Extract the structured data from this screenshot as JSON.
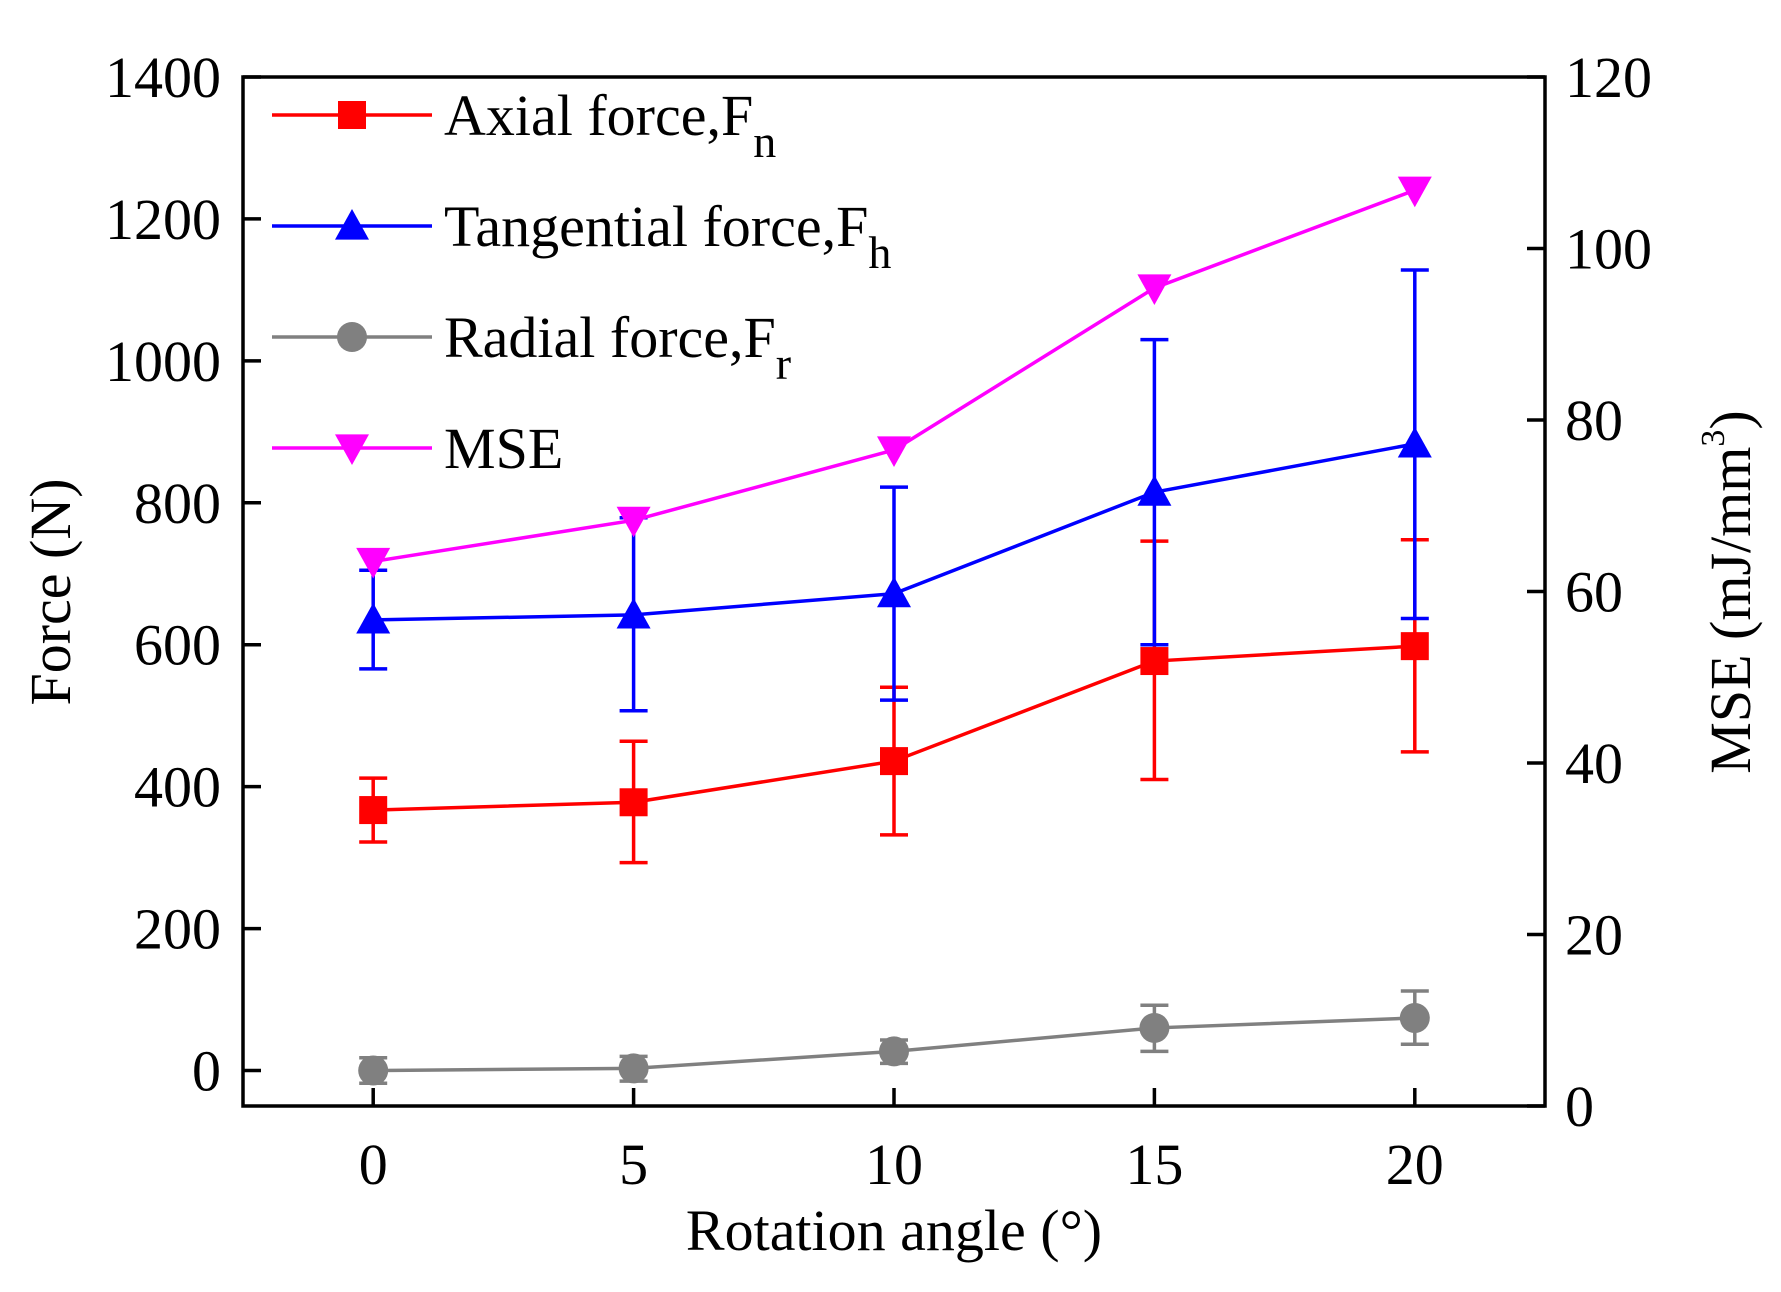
{
  "chart_data": {
    "type": "line",
    "xlabel": "Rotation angle (°)",
    "ylabel_left": "Force (N)",
    "ylabel_right_base": "MSE (mJ/mm",
    "ylabel_right_sup": "3",
    "ylabel_right_end": ")",
    "x": [
      0,
      5,
      10,
      15,
      20
    ],
    "xlim": [
      -2.5,
      22.5
    ],
    "ylim_left": [
      -50,
      1400
    ],
    "ylim_right": [
      0,
      120
    ],
    "x_ticks": [
      0,
      5,
      10,
      15,
      20
    ],
    "y_ticks_left": [
      0,
      200,
      400,
      600,
      800,
      1000,
      1200,
      1400
    ],
    "y_ticks_right": [
      0,
      20,
      40,
      60,
      80,
      100,
      120
    ],
    "grid": false,
    "legend_position": "top-left",
    "series": [
      {
        "name_main": "Axial force,F",
        "name_sub": "n",
        "axis": "left",
        "color": "#ff0000",
        "marker": "square",
        "values": [
          367,
          378,
          436,
          577,
          598
        ],
        "err_low": [
          322,
          293,
          332,
          410,
          449
        ],
        "err_high": [
          412,
          464,
          540,
          746,
          748
        ]
      },
      {
        "name_main": "Tangential force,F",
        "name_sub": "h",
        "axis": "left",
        "color": "#0000ff",
        "marker": "triangle-up",
        "values": [
          635,
          642,
          672,
          815,
          883
        ],
        "err_low": [
          566,
          507,
          522,
          600,
          637
        ],
        "err_high": [
          705,
          779,
          822,
          1030,
          1128
        ]
      },
      {
        "name_main": "Radial force,F",
        "name_sub": "r",
        "axis": "left",
        "color": "#808080",
        "marker": "circle",
        "values": [
          0,
          3,
          27,
          60,
          74
        ],
        "err_low": [
          -18,
          -15,
          10,
          27,
          37
        ],
        "err_high": [
          18,
          20,
          43,
          92,
          112
        ]
      },
      {
        "name_main": "MSE",
        "name_sub": "",
        "axis": "right",
        "color": "#ff00ff",
        "marker": "triangle-down",
        "values": [
          63.5,
          68.3,
          76.5,
          95.4,
          106.8
        ]
      }
    ]
  }
}
